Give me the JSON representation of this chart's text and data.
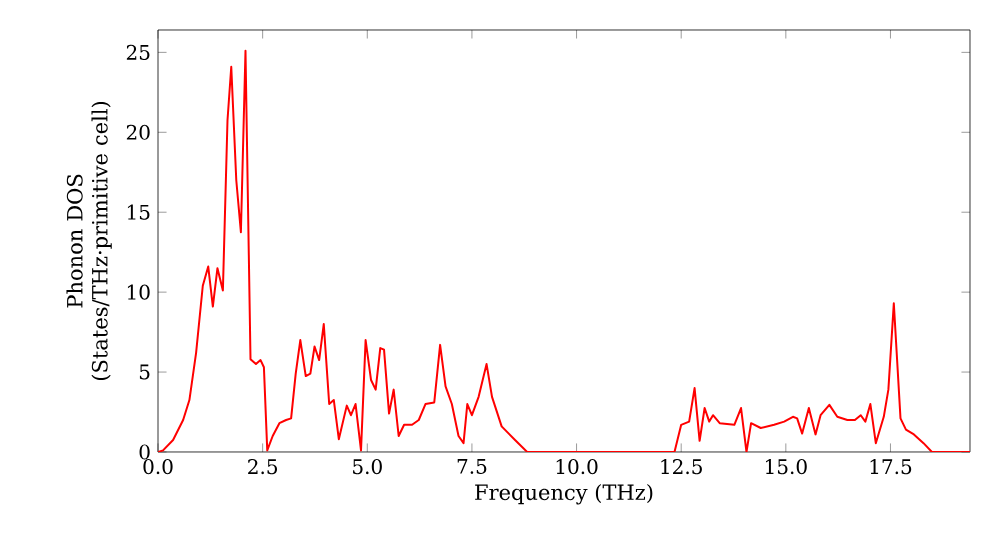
{
  "chart_data": {
    "type": "line",
    "xlabel": "Frequency (THz)",
    "ylabel": "Phonon DOS (States/THz·primitive cell)",
    "xlim": [
      0,
      19.4
    ],
    "ylim": [
      0,
      26.4
    ],
    "xticks": [
      {
        "value": 0,
        "label": "0.0"
      },
      {
        "value": 2.5,
        "label": "2.5"
      },
      {
        "value": 5,
        "label": "5.0"
      },
      {
        "value": 7.5,
        "label": "7.5"
      },
      {
        "value": 10,
        "label": "10.0"
      },
      {
        "value": 12.5,
        "label": "12.5"
      },
      {
        "value": 15,
        "label": "15.0"
      },
      {
        "value": 17.5,
        "label": "17.5"
      }
    ],
    "yticks": [
      0,
      5,
      10,
      15,
      20,
      25
    ],
    "grid": false,
    "marker": "none",
    "line_style": "solid",
    "series": [
      {
        "color": "#ff0000",
        "x": [
          0,
          0.12,
          0.36,
          0.6,
          0.75,
          0.91,
          1.07,
          1.2,
          1.31,
          1.42,
          1.55,
          1.66,
          1.75,
          1.87,
          1.98,
          2.09,
          2.21,
          2.34,
          2.45,
          2.53,
          2.61,
          2.74,
          2.9,
          3.06,
          3.18,
          3.29,
          3.4,
          3.53,
          3.64,
          3.74,
          3.85,
          3.96,
          4.09,
          4.2,
          4.32,
          4.51,
          4.61,
          4.72,
          4.85,
          4.96,
          5.09,
          5.2,
          5.31,
          5.4,
          5.52,
          5.63,
          5.75,
          5.88,
          6.07,
          6.23,
          6.39,
          6.6,
          6.74,
          6.87,
          7.02,
          7.18,
          7.3,
          7.39,
          7.5,
          7.66,
          7.85,
          7.98,
          8.21,
          8.53,
          8.82,
          12.34,
          12.5,
          12.69,
          12.82,
          12.94,
          13.06,
          13.17,
          13.26,
          13.42,
          13.77,
          13.93,
          14.06,
          14.17,
          14.4,
          14.72,
          14.96,
          15.17,
          15.27,
          15.39,
          15.55,
          15.71,
          15.83,
          16.04,
          16.23,
          16.47,
          16.65,
          16.79,
          16.9,
          17.02,
          17.15,
          17.34,
          17.45,
          17.58,
          17.74,
          17.87,
          18.06,
          18.29,
          18.49,
          19.4
        ],
        "values": [
          0,
          0.1,
          0.75,
          2,
          3.25,
          6.2,
          10.4,
          11.6,
          9.1,
          11.5,
          10.1,
          20.75,
          24.1,
          17,
          13.75,
          25.1,
          5.8,
          5.5,
          5.75,
          5.3,
          0.1,
          1,
          1.8,
          2,
          2.1,
          4.9,
          7,
          4.75,
          4.9,
          6.6,
          5.75,
          8,
          3,
          3.25,
          0.8,
          2.9,
          2.3,
          3,
          0.1,
          7,
          4.5,
          3.9,
          6.5,
          6.4,
          2.4,
          3.9,
          1,
          1.7,
          1.7,
          2,
          3,
          3.1,
          6.7,
          4.1,
          3,
          1,
          0.55,
          3,
          2.3,
          3.45,
          5.5,
          3.45,
          1.6,
          0.75,
          0,
          0,
          1.7,
          1.9,
          4,
          0.7,
          2.75,
          1.9,
          2.3,
          1.8,
          1.7,
          2.75,
          0,
          1.8,
          1.5,
          1.7,
          1.9,
          2.2,
          2.1,
          1.15,
          2.75,
          1.1,
          2.3,
          2.95,
          2.2,
          2,
          2,
          2.3,
          1.9,
          3,
          0.55,
          2.2,
          3.9,
          9.3,
          2.1,
          1.4,
          1.1,
          0.55,
          0,
          0
        ]
      }
    ]
  }
}
